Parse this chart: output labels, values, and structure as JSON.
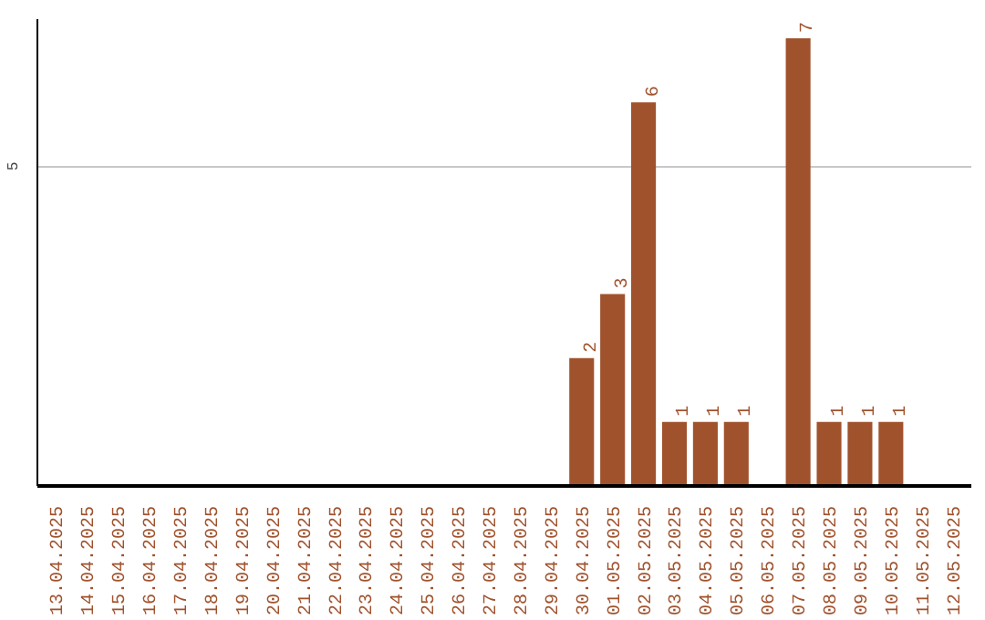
{
  "chart_data": {
    "type": "bar",
    "categories": [
      "13.04.2025",
      "14.04.2025",
      "15.04.2025",
      "16.04.2025",
      "17.04.2025",
      "18.04.2025",
      "19.04.2025",
      "20.04.2025",
      "21.04.2025",
      "22.04.2025",
      "23.04.2025",
      "24.04.2025",
      "25.04.2025",
      "26.04.2025",
      "27.04.2025",
      "28.04.2025",
      "29.04.2025",
      "30.04.2025",
      "01.05.2025",
      "02.05.2025",
      "03.05.2025",
      "04.05.2025",
      "05.05.2025",
      "06.05.2025",
      "07.05.2025",
      "08.05.2025",
      "09.05.2025",
      "10.05.2025",
      "11.05.2025",
      "12.05.2025"
    ],
    "values": [
      null,
      null,
      null,
      null,
      null,
      null,
      null,
      null,
      null,
      null,
      null,
      null,
      null,
      null,
      null,
      null,
      null,
      2,
      3,
      6,
      1,
      1,
      1,
      null,
      7,
      1,
      1,
      1,
      null,
      null
    ],
    "color": "#a0522d",
    "ylim": [
      0,
      7.3
    ],
    "yticks": [
      5
    ],
    "grid": "y",
    "data_labels": true
  }
}
